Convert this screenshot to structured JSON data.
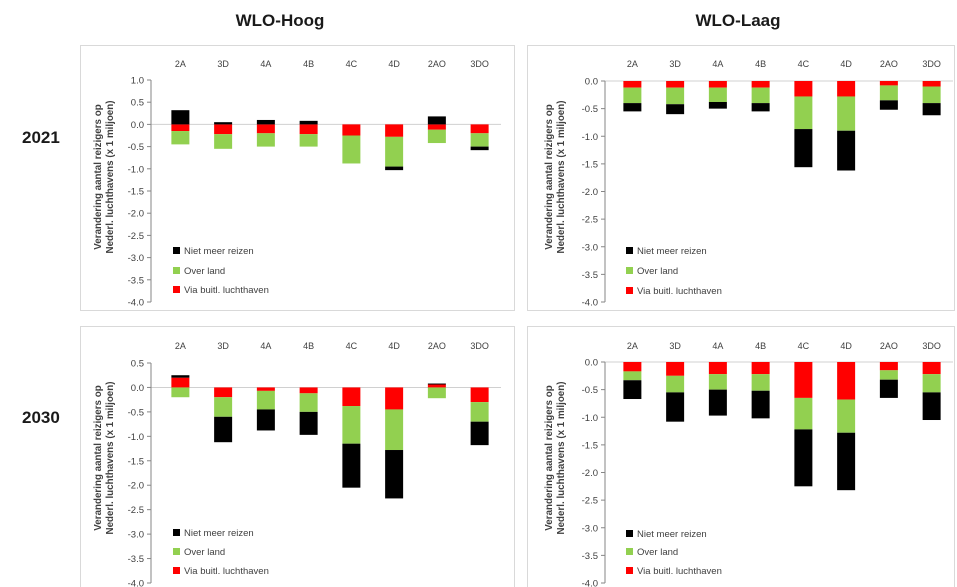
{
  "headers": {
    "columns": [
      "WLO-Hoog",
      "WLO-Laag"
    ],
    "rows": [
      "2021",
      "2030"
    ]
  },
  "chart_data": [
    {
      "type": "bar",
      "stacked": true,
      "categories": [
        "2A",
        "3D",
        "4A",
        "4B",
        "4C",
        "4D",
        "2AO",
        "3DO"
      ],
      "ylabel": [
        "Verandering aantal reizigers op",
        "Nederl. luchthavens (x 1 miljoen)"
      ],
      "ylim": [
        -4.0,
        1.0
      ],
      "yticks": [
        "1.0",
        "0.5",
        "0.0",
        "-0.5",
        "-1.0",
        "-1.5",
        "-2.0",
        "-2.5",
        "-3.0",
        "-3.5",
        "-4.0"
      ],
      "grid": false,
      "legend": "lower left",
      "series": [
        {
          "name": "Via buitl. luchthaven",
          "color": "#ff0000",
          "values": [
            -0.15,
            -0.22,
            -0.2,
            -0.22,
            -0.25,
            -0.28,
            -0.12,
            -0.2
          ]
        },
        {
          "name": "Over land",
          "color": "#92d050",
          "values": [
            -0.3,
            -0.33,
            -0.3,
            -0.28,
            -0.63,
            -0.67,
            -0.3,
            -0.3
          ]
        },
        {
          "name": "Niet meer reizen",
          "color": "#000000",
          "values": [
            0.32,
            0.05,
            0.1,
            0.08,
            0.0,
            -0.08,
            0.18,
            -0.08
          ]
        }
      ]
    },
    {
      "type": "bar",
      "stacked": true,
      "categories": [
        "2A",
        "3D",
        "4A",
        "4B",
        "4C",
        "4D",
        "2AO",
        "3DO"
      ],
      "ylabel": [
        "Verandering aantal reizigers op",
        "Nederl. luchthavens (x 1 miljoen)"
      ],
      "ylim": [
        -4.0,
        0.0
      ],
      "yticks": [
        "0.0",
        "-0.5",
        "-1.0",
        "-1.5",
        "-2.0",
        "-2.5",
        "-3.0",
        "-3.5",
        "-4.0"
      ],
      "grid": false,
      "legend": "lower left",
      "series": [
        {
          "name": "Via buitl. luchthaven",
          "color": "#ff0000",
          "values": [
            -0.12,
            -0.12,
            -0.12,
            -0.12,
            -0.28,
            -0.28,
            -0.08,
            -0.1
          ]
        },
        {
          "name": "Over land",
          "color": "#92d050",
          "values": [
            -0.28,
            -0.3,
            -0.26,
            -0.28,
            -0.59,
            -0.62,
            -0.27,
            -0.3
          ]
        },
        {
          "name": "Niet meer reizen",
          "color": "#000000",
          "values": [
            -0.15,
            -0.18,
            -0.12,
            -0.15,
            -0.69,
            -0.72,
            -0.17,
            -0.22
          ]
        }
      ]
    },
    {
      "type": "bar",
      "stacked": true,
      "categories": [
        "2A",
        "3D",
        "4A",
        "4B",
        "4C",
        "4D",
        "2AO",
        "3DO"
      ],
      "ylabel": [
        "Verandering aantal reizigers op",
        "Nederl. luchthavens (x 1 miljoen)"
      ],
      "ylim": [
        -4.0,
        0.5
      ],
      "yticks": [
        "0.5",
        "0.0",
        "-0.5",
        "-1.0",
        "-1.5",
        "-2.0",
        "-2.5",
        "-3.0",
        "-3.5",
        "-4.0"
      ],
      "grid": false,
      "legend": "lower left",
      "series": [
        {
          "name": "Via buitl. luchthaven",
          "color": "#ff0000",
          "values": [
            0.2,
            -0.2,
            -0.07,
            -0.12,
            -0.38,
            -0.45,
            0.06,
            -0.3
          ]
        },
        {
          "name": "Over land",
          "color": "#92d050",
          "values": [
            -0.2,
            -0.4,
            -0.38,
            -0.38,
            -0.77,
            -0.83,
            -0.22,
            -0.4
          ]
        },
        {
          "name": "Niet meer reizen",
          "color": "#000000",
          "values": [
            0.05,
            -0.52,
            -0.43,
            -0.47,
            -0.9,
            -0.99,
            0.02,
            -0.48
          ]
        }
      ]
    },
    {
      "type": "bar",
      "stacked": true,
      "categories": [
        "2A",
        "3D",
        "4A",
        "4B",
        "4C",
        "4D",
        "2AO",
        "3DO"
      ],
      "ylabel": [
        "Verandering aantal reizigers op",
        "Nederl. luchthavens (x 1 miljoen)"
      ],
      "ylim": [
        -4.0,
        0.0
      ],
      "yticks": [
        "0.0",
        "-0.5",
        "-1.0",
        "-1.5",
        "-2.0",
        "-2.5",
        "-3.0",
        "-3.5",
        "-4.0"
      ],
      "grid": false,
      "legend": "lower left",
      "series": [
        {
          "name": "Via buitl. luchthaven",
          "color": "#ff0000",
          "values": [
            -0.17,
            -0.25,
            -0.22,
            -0.22,
            -0.65,
            -0.68,
            -0.15,
            -0.22
          ]
        },
        {
          "name": "Over land",
          "color": "#92d050",
          "values": [
            -0.16,
            -0.3,
            -0.28,
            -0.3,
            -0.57,
            -0.6,
            -0.17,
            -0.33
          ]
        },
        {
          "name": "Niet meer reizen",
          "color": "#000000",
          "values": [
            -0.34,
            -0.53,
            -0.47,
            -0.5,
            -1.03,
            -1.04,
            -0.33,
            -0.5
          ]
        }
      ]
    }
  ]
}
